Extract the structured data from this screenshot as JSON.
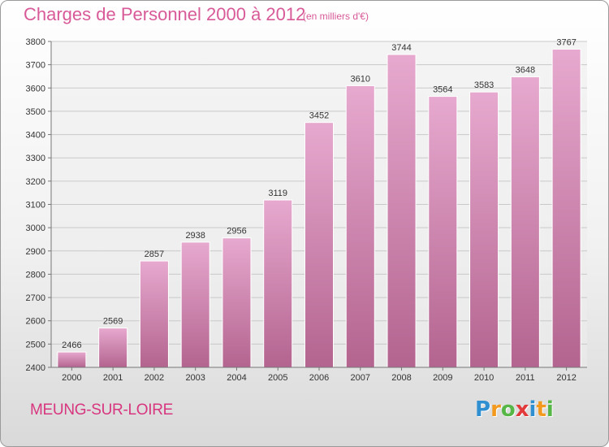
{
  "header": {
    "title": "Charges de Personnel 2000 à 2012",
    "subtitle": "(en milliers d'€)"
  },
  "footer": {
    "commune": "MEUNG-SUR-LOIRE",
    "logo_letters": [
      "P",
      "r",
      "o",
      "x",
      "i",
      "t",
      "i"
    ],
    "logo_colors": [
      "#2f8fd0",
      "#f39a1e",
      "#56b646",
      "#e23a3a",
      "#2f8fd0",
      "#f39a1e",
      "#56b646"
    ]
  },
  "colors": {
    "bar_top": "#e7a9cf",
    "bar_bottom": "#b3648f",
    "text_accent": "#d85a98"
  },
  "chart_data": {
    "type": "bar",
    "categories": [
      "2000",
      "2001",
      "2002",
      "2003",
      "2004",
      "2005",
      "2006",
      "2007",
      "2008",
      "2009",
      "2010",
      "2011",
      "2012"
    ],
    "values": [
      2466,
      2569,
      2857,
      2938,
      2956,
      3119,
      3452,
      3610,
      3744,
      3564,
      3583,
      3648,
      3767
    ],
    "ylim": [
      2400,
      3800
    ],
    "yticks": [
      2400,
      2500,
      2600,
      2700,
      2800,
      2900,
      3000,
      3100,
      3200,
      3300,
      3400,
      3500,
      3600,
      3700,
      3800
    ],
    "grid": true,
    "data_labels": true,
    "title": "Charges de Personnel 2000 à 2012",
    "xlabel": "",
    "ylabel": ""
  }
}
